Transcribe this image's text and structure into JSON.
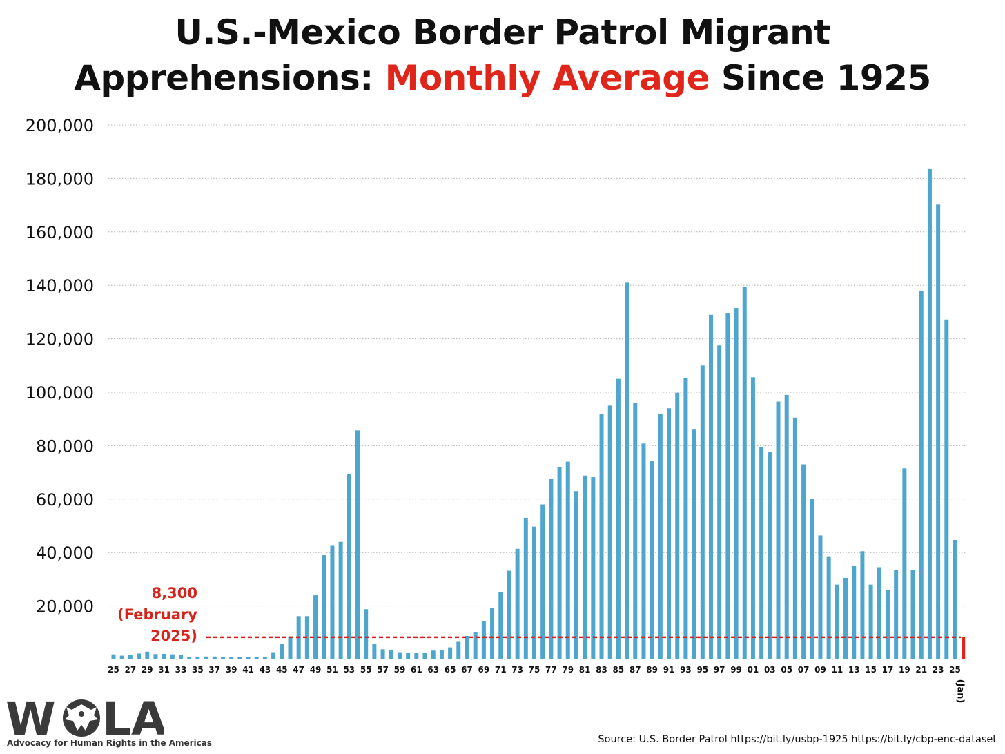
{
  "title": {
    "line1": "U.S.-Mexico Border Patrol Migrant",
    "line2_prefix": "Apprehensions: ",
    "line2_accent": "Monthly Average",
    "line2_suffix": " Since 1925"
  },
  "colors": {
    "bar": "#4ea6cf",
    "current_bar": "#e0261b",
    "reference_line": "#d8231a",
    "accent_title": "#e0261b",
    "grid": "#b3b3b3"
  },
  "chart_data": {
    "type": "bar",
    "title": "U.S.-Mexico Border Patrol Migrant Apprehensions: Monthly Average Since 1925",
    "xlabel": "",
    "ylabel": "",
    "ylim": [
      0,
      200000
    ],
    "grid": true,
    "yticks": [
      20000,
      40000,
      60000,
      80000,
      100000,
      120000,
      140000,
      160000,
      180000,
      200000
    ],
    "ytick_labels": [
      "20,000",
      "40,000",
      "60,000",
      "80,000",
      "100,000",
      "120,000",
      "140,000",
      "160,000",
      "180,000",
      "200,000"
    ],
    "categories": [
      "1925",
      "1926",
      "1927",
      "1928",
      "1929",
      "1930",
      "1931",
      "1932",
      "1933",
      "1934",
      "1935",
      "1936",
      "1937",
      "1938",
      "1939",
      "1940",
      "1941",
      "1942",
      "1943",
      "1944",
      "1945",
      "1946",
      "1947",
      "1948",
      "1949",
      "1950",
      "1951",
      "1952",
      "1953",
      "1954",
      "1955",
      "1956",
      "1957",
      "1958",
      "1959",
      "1960",
      "1961",
      "1962",
      "1963",
      "1964",
      "1965",
      "1966",
      "1967",
      "1968",
      "1969",
      "1970",
      "1971",
      "1972",
      "1973",
      "1974",
      "1975",
      "1976",
      "1977",
      "1978",
      "1979",
      "1980",
      "1981",
      "1982",
      "1983",
      "1984",
      "1985",
      "1986",
      "1987",
      "1988",
      "1989",
      "1990",
      "1991",
      "1992",
      "1993",
      "1994",
      "1995",
      "1996",
      "1997",
      "1998",
      "1999",
      "2000",
      "2001",
      "2002",
      "2003",
      "2004",
      "2005",
      "2006",
      "2007",
      "2008",
      "2009",
      "2010",
      "2011",
      "2012",
      "2013",
      "2014",
      "2015",
      "2016",
      "2017",
      "2018",
      "2019",
      "2020",
      "2021",
      "2022",
      "2023",
      "2024"
    ],
    "values": [
      1900,
      1400,
      1700,
      2200,
      2900,
      2000,
      2100,
      1900,
      1600,
      1000,
      1000,
      1100,
      1100,
      1000,
      900,
      900,
      900,
      900,
      1000,
      2700,
      5800,
      8600,
      16200,
      16200,
      24000,
      39000,
      42500,
      44000,
      69500,
      85700,
      18800,
      5700,
      3800,
      3500,
      2700,
      2500,
      2500,
      2500,
      3300,
      3600,
      4500,
      6600,
      8800,
      10200,
      14300,
      19300,
      25200,
      33200,
      41400,
      53000,
      49700,
      58000,
      67500,
      72000,
      74000,
      63000,
      68800,
      68200,
      92000,
      95000,
      105000,
      141000,
      96000,
      80800,
      74300,
      91800,
      94000,
      99800,
      105200,
      86000,
      110000,
      129000,
      117500,
      129500,
      131500,
      139500,
      105600,
      79500,
      77500,
      96500,
      99000,
      90500,
      73000,
      60200,
      46400,
      38600,
      28000,
      30500,
      35000,
      40500,
      28000,
      34500,
      26000,
      33500,
      71500,
      33500,
      138000,
      183500,
      170200,
      127200
    ],
    "tick_labels": [
      "25",
      "27",
      "29",
      "31",
      "33",
      "35",
      "37",
      "39",
      "41",
      "43",
      "45",
      "47",
      "49",
      "51",
      "53",
      "55",
      "57",
      "59",
      "61",
      "63",
      "65",
      "67",
      "69",
      "71",
      "73",
      "75",
      "77",
      "79",
      "81",
      "83",
      "85",
      "87",
      "89",
      "91",
      "93",
      "95",
      "97",
      "99",
      "01",
      "03",
      "05",
      "07",
      "09",
      "11",
      "13",
      "15",
      "17",
      "19",
      "21",
      "23",
      "25"
    ],
    "extra_bar": {
      "label": "2025 (Jan)",
      "value": 44700
    },
    "current_bar": {
      "label": "February 2025",
      "value": 8300
    },
    "reference_line": {
      "value": 8300
    },
    "extra_tick_label": "(Jan)",
    "annotation": [
      "8,300",
      "(February",
      "2025)"
    ]
  },
  "logo": {
    "text": "WOLA",
    "tagline": "Advocacy for Human Rights in the Americas"
  },
  "source": "Source: U.S. Border Patrol https://bit.ly/usbp-1925 https://bit.ly/cbp-enc-dataset"
}
